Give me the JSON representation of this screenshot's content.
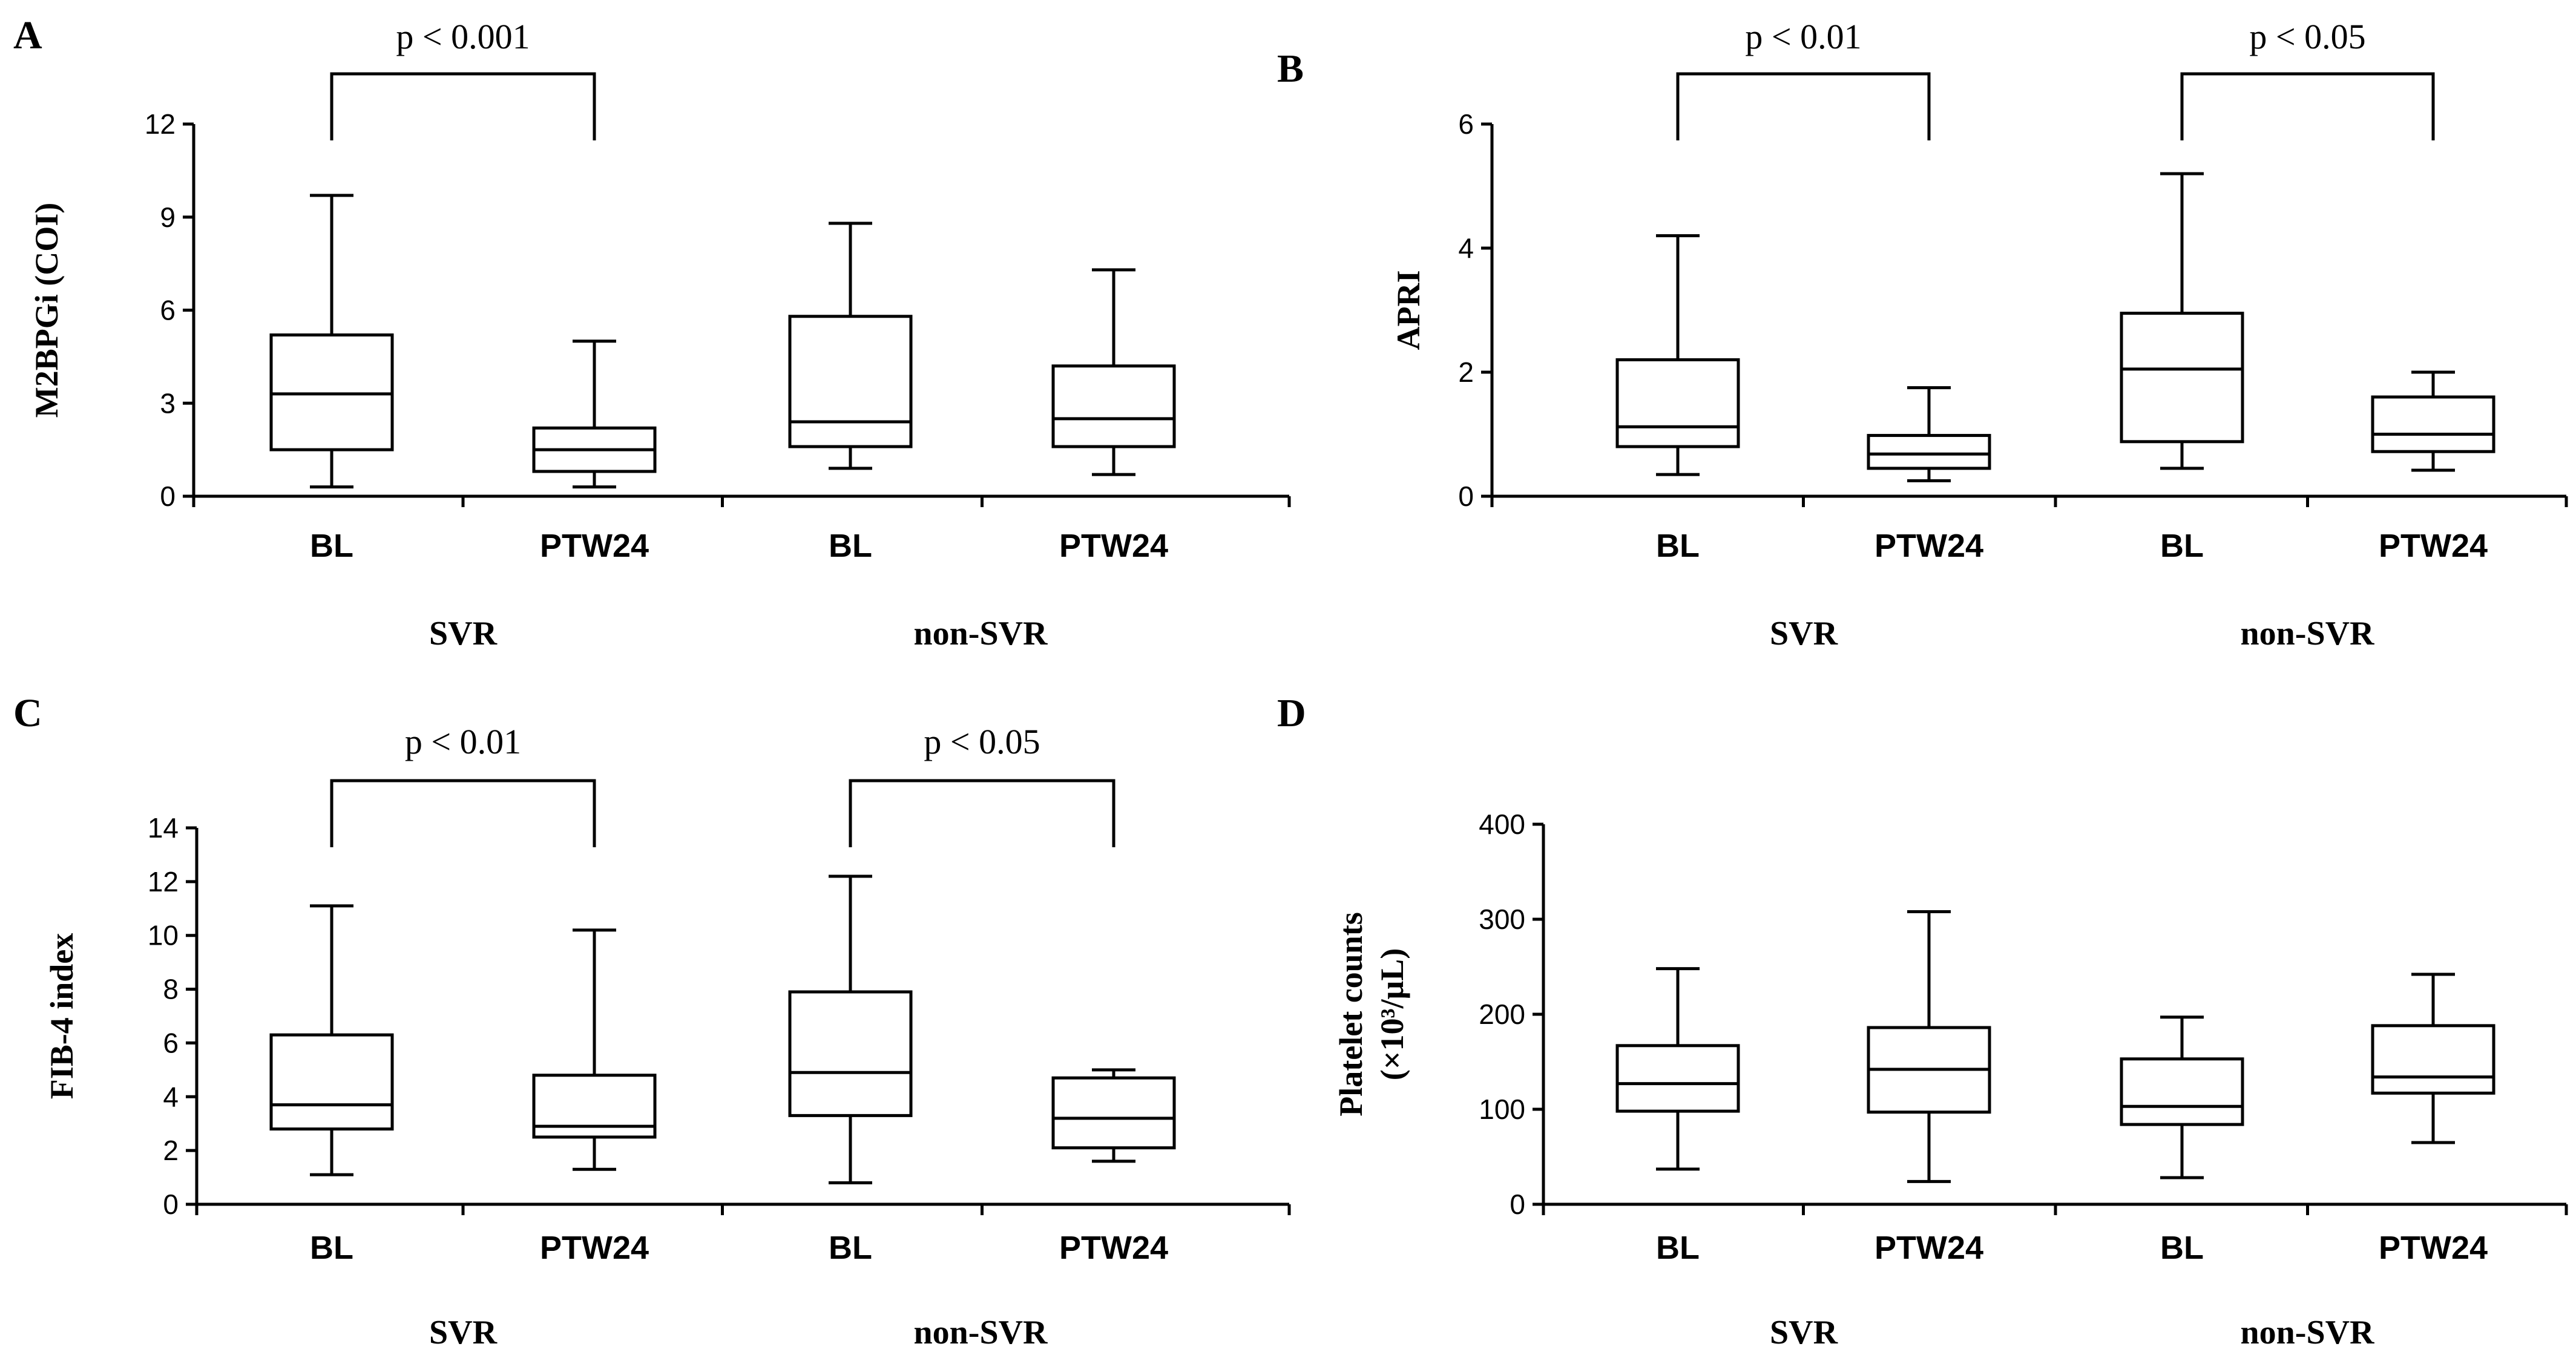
{
  "chart_data": [
    {
      "type": "box",
      "panel_label": "A",
      "ylabel": "M2BPGi (COI)",
      "ylim": [
        0,
        12
      ],
      "yticks": [
        0,
        3,
        6,
        9,
        12
      ],
      "categories": [
        "BL",
        "PTW24",
        "BL",
        "PTW24"
      ],
      "groups": [
        "SVR",
        "non-SVR"
      ],
      "boxes": [
        {
          "min": 0.3,
          "q1": 1.5,
          "median": 3.3,
          "q3": 5.2,
          "max": 9.7
        },
        {
          "min": 0.3,
          "q1": 0.8,
          "median": 1.5,
          "q3": 2.2,
          "max": 5.0
        },
        {
          "min": 0.9,
          "q1": 1.6,
          "median": 2.4,
          "q3": 5.8,
          "max": 8.8
        },
        {
          "min": 0.7,
          "q1": 1.6,
          "median": 2.5,
          "q3": 4.2,
          "max": 7.3
        }
      ],
      "significance": [
        {
          "from": 0,
          "to": 1,
          "label": "p < 0.001"
        }
      ]
    },
    {
      "type": "box",
      "panel_label": "B",
      "ylabel": "APRI",
      "ylim": [
        0,
        6
      ],
      "yticks": [
        0,
        2,
        4,
        6
      ],
      "categories": [
        "BL",
        "PTW24",
        "BL",
        "PTW24"
      ],
      "groups": [
        "SVR",
        "non-SVR"
      ],
      "boxes": [
        {
          "min": 0.35,
          "q1": 0.8,
          "median": 1.12,
          "q3": 2.2,
          "max": 4.2
        },
        {
          "min": 0.25,
          "q1": 0.45,
          "median": 0.68,
          "q3": 0.98,
          "max": 1.75
        },
        {
          "min": 0.45,
          "q1": 0.88,
          "median": 2.05,
          "q3": 2.95,
          "max": 5.2
        },
        {
          "min": 0.42,
          "q1": 0.72,
          "median": 1.0,
          "q3": 1.6,
          "max": 2.0
        }
      ],
      "significance": [
        {
          "from": 0,
          "to": 1,
          "label": "p < 0.01"
        },
        {
          "from": 2,
          "to": 3,
          "label": "p < 0.05"
        }
      ]
    },
    {
      "type": "box",
      "panel_label": "C",
      "ylabel": "FIB-4 index",
      "ylim": [
        0,
        14
      ],
      "yticks": [
        0,
        2,
        4,
        6,
        8,
        10,
        12,
        14
      ],
      "categories": [
        "BL",
        "PTW24",
        "BL",
        "PTW24"
      ],
      "groups": [
        "SVR",
        "non-SVR"
      ],
      "boxes": [
        {
          "min": 1.1,
          "q1": 2.8,
          "median": 3.7,
          "q3": 6.3,
          "max": 11.1
        },
        {
          "min": 1.3,
          "q1": 2.5,
          "median": 2.9,
          "q3": 4.8,
          "max": 10.2
        },
        {
          "min": 0.8,
          "q1": 3.3,
          "median": 4.9,
          "q3": 7.9,
          "max": 12.2
        },
        {
          "min": 1.6,
          "q1": 2.1,
          "median": 3.2,
          "q3": 4.7,
          "max": 5.0
        }
      ],
      "significance": [
        {
          "from": 0,
          "to": 1,
          "label": "p < 0.01"
        },
        {
          "from": 2,
          "to": 3,
          "label": "p < 0.05"
        }
      ]
    },
    {
      "type": "box",
      "panel_label": "D",
      "ylabel": "Platelet counts",
      "ylabel_line2": "(×10³/μL)",
      "ylim": [
        0,
        400
      ],
      "yticks": [
        0,
        100,
        200,
        300,
        400
      ],
      "categories": [
        "BL",
        "PTW24",
        "BL",
        "PTW24"
      ],
      "groups": [
        "SVR",
        "non-SVR"
      ],
      "boxes": [
        {
          "min": 37,
          "q1": 98,
          "median": 127,
          "q3": 167,
          "max": 248
        },
        {
          "min": 24,
          "q1": 97,
          "median": 142,
          "q3": 186,
          "max": 308
        },
        {
          "min": 28,
          "q1": 84,
          "median": 103,
          "q3": 153,
          "max": 197
        },
        {
          "min": 65,
          "q1": 117,
          "median": 134,
          "q3": 188,
          "max": 242
        }
      ],
      "significance": []
    }
  ]
}
